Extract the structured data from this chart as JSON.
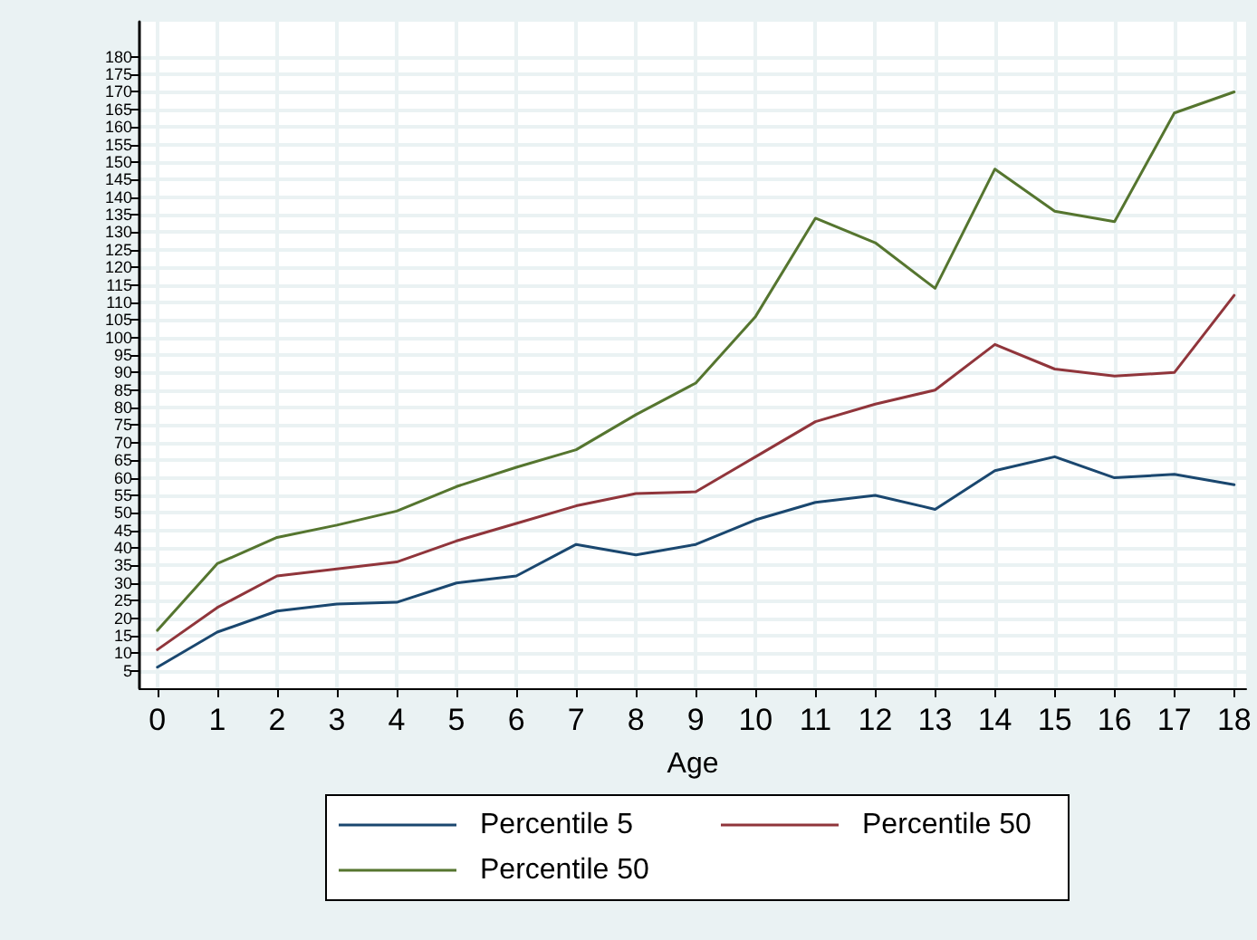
{
  "chart_data": {
    "type": "line",
    "xlabel": "Age",
    "x": [
      0,
      1,
      2,
      3,
      4,
      5,
      6,
      7,
      8,
      9,
      10,
      11,
      12,
      13,
      14,
      15,
      16,
      17,
      18
    ],
    "series": [
      {
        "name": "Percentile 5",
        "color": "#1a476f",
        "values": [
          6,
          16,
          22,
          24,
          24.5,
          30,
          32,
          41,
          38,
          41,
          48,
          53,
          55,
          51,
          62,
          66,
          60,
          61,
          58
        ]
      },
      {
        "name": "Percentile 50",
        "color": "#90353b",
        "values": [
          11,
          23,
          32,
          34,
          36,
          42,
          47,
          52,
          55.5,
          56,
          66,
          76,
          81,
          85,
          98,
          91,
          89,
          90,
          112
        ]
      },
      {
        "name": "Percentile 50",
        "color": "#55752f",
        "values": [
          16.5,
          35.5,
          43,
          46.5,
          50.5,
          57.5,
          63,
          68,
          78,
          87,
          106,
          134,
          127,
          114,
          148,
          136,
          133,
          164,
          170
        ]
      }
    ],
    "xlim": [
      -0.3,
      18.2
    ],
    "xticks": [
      0,
      1,
      2,
      3,
      4,
      5,
      6,
      7,
      8,
      9,
      10,
      11,
      12,
      13,
      14,
      15,
      16,
      17,
      18
    ],
    "ylim": [
      0,
      190
    ],
    "yticks": [
      5,
      10,
      15,
      20,
      25,
      30,
      35,
      40,
      45,
      50,
      55,
      60,
      65,
      70,
      75,
      80,
      85,
      90,
      95,
      100,
      105,
      110,
      115,
      120,
      125,
      130,
      135,
      140,
      145,
      150,
      155,
      160,
      165,
      170,
      175,
      180
    ],
    "grid": true,
    "legend": "bottom",
    "marker": "none",
    "line_style": "solid"
  }
}
